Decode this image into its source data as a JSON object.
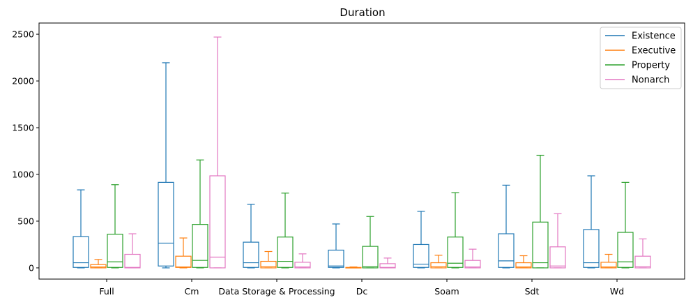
{
  "chart_data": {
    "type": "box",
    "title": "Duration",
    "xlabel": "",
    "ylabel": "",
    "ylim": [
      -120,
      2620
    ],
    "yticks": [
      0,
      500,
      1000,
      1500,
      2000,
      2500
    ],
    "categories": [
      "Full",
      "Cm",
      "Data Storage & Processing",
      "Dc",
      "Soam",
      "Sdt",
      "Wd"
    ],
    "legend": {
      "placement": "top-right"
    },
    "series": [
      {
        "name": "Existence",
        "color": "#1f77b4",
        "boxes": [
          {
            "min": 0,
            "q1": 5,
            "median": 55,
            "q3": 335,
            "max": 835
          },
          {
            "min": 0,
            "q1": 20,
            "median": 265,
            "q3": 915,
            "max": 2195
          },
          {
            "min": 0,
            "q1": 5,
            "median": 55,
            "q3": 275,
            "max": 680
          },
          {
            "min": 0,
            "q1": 5,
            "median": 20,
            "q3": 190,
            "max": 470
          },
          {
            "min": 0,
            "q1": 5,
            "median": 40,
            "q3": 250,
            "max": 605
          },
          {
            "min": 0,
            "q1": 5,
            "median": 75,
            "q3": 365,
            "max": 885
          },
          {
            "min": 0,
            "q1": 5,
            "median": 55,
            "q3": 410,
            "max": 985
          }
        ]
      },
      {
        "name": "Executive",
        "color": "#ff7f0e",
        "boxes": [
          {
            "min": 0,
            "q1": 0,
            "median": 10,
            "q3": 35,
            "max": 90
          },
          {
            "min": 0,
            "q1": 5,
            "median": 10,
            "q3": 125,
            "max": 320
          },
          {
            "min": 0,
            "q1": 0,
            "median": 15,
            "q3": 70,
            "max": 175
          },
          {
            "min": 0,
            "q1": 0,
            "median": 2,
            "q3": 5,
            "max": 10
          },
          {
            "min": 0,
            "q1": 0,
            "median": 15,
            "q3": 55,
            "max": 135
          },
          {
            "min": 0,
            "q1": 0,
            "median": 10,
            "q3": 55,
            "max": 130
          },
          {
            "min": 0,
            "q1": 0,
            "median": 10,
            "q3": 60,
            "max": 145
          }
        ]
      },
      {
        "name": "Property",
        "color": "#2ca02c",
        "boxes": [
          {
            "min": 0,
            "q1": 5,
            "median": 65,
            "q3": 360,
            "max": 890
          },
          {
            "min": 0,
            "q1": 5,
            "median": 80,
            "q3": 465,
            "max": 1155
          },
          {
            "min": 0,
            "q1": 5,
            "median": 70,
            "q3": 330,
            "max": 800
          },
          {
            "min": 0,
            "q1": 0,
            "median": 15,
            "q3": 230,
            "max": 550
          },
          {
            "min": 0,
            "q1": 5,
            "median": 50,
            "q3": 330,
            "max": 805
          },
          {
            "min": 0,
            "q1": 0,
            "median": 55,
            "q3": 490,
            "max": 1205
          },
          {
            "min": 0,
            "q1": 5,
            "median": 65,
            "q3": 380,
            "max": 915
          }
        ]
      },
      {
        "name": "Nonarch",
        "color": "#e377c2",
        "boxes": [
          {
            "min": 0,
            "q1": 0,
            "median": 5,
            "q3": 145,
            "max": 365
          },
          {
            "min": 0,
            "q1": 0,
            "median": 115,
            "q3": 985,
            "max": 2470
          },
          {
            "min": 0,
            "q1": 0,
            "median": 10,
            "q3": 60,
            "max": 150
          },
          {
            "min": 0,
            "q1": 0,
            "median": 5,
            "q3": 45,
            "max": 105
          },
          {
            "min": 0,
            "q1": 0,
            "median": 10,
            "q3": 80,
            "max": 200
          },
          {
            "min": 0,
            "q1": 0,
            "median": 20,
            "q3": 225,
            "max": 580
          },
          {
            "min": 0,
            "q1": 0,
            "median": 15,
            "q3": 125,
            "max": 310
          }
        ]
      }
    ]
  }
}
